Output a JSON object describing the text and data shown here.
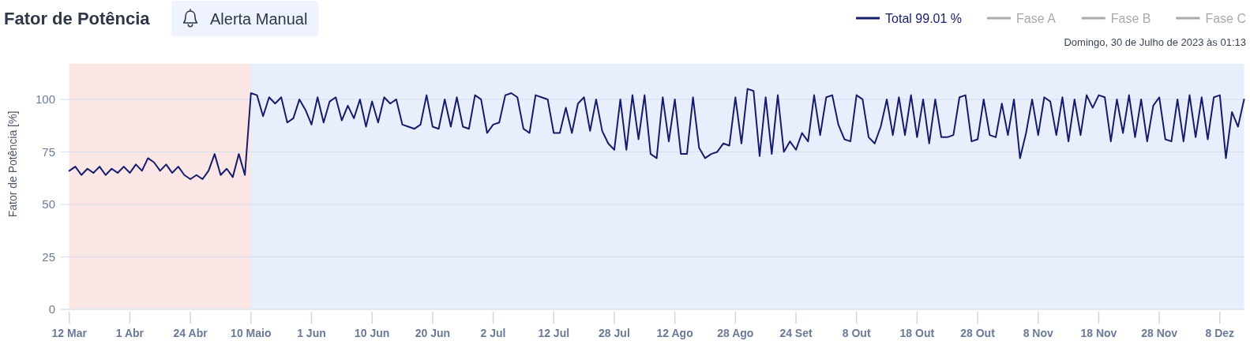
{
  "chart_data": {
    "type": "line",
    "title": "Fator de Potência",
    "ylabel": "Fator de Potência [%]",
    "annotations": [
      "Alerta Manual",
      "Domingo, 30 de Julho de 2023 às 01:13"
    ],
    "categories": [
      "12 Mar",
      null,
      null,
      null,
      null,
      null,
      null,
      null,
      null,
      null,
      "1 Abr",
      null,
      null,
      null,
      null,
      null,
      null,
      null,
      null,
      null,
      "24 Abr",
      null,
      null,
      null,
      null,
      null,
      null,
      null,
      null,
      null,
      "10 Maio",
      null,
      null,
      null,
      null,
      null,
      null,
      null,
      null,
      null,
      "1 Jun",
      null,
      null,
      null,
      null,
      null,
      null,
      null,
      null,
      null,
      "10 Jun",
      null,
      null,
      null,
      null,
      null,
      null,
      null,
      null,
      null,
      "20 Jun",
      null,
      null,
      null,
      null,
      null,
      null,
      null,
      null,
      null,
      "2 Jul",
      null,
      null,
      null,
      null,
      null,
      null,
      null,
      null,
      null,
      "12 Jul",
      null,
      null,
      null,
      null,
      null,
      null,
      null,
      null,
      null,
      "28 Jul",
      null,
      null,
      null,
      null,
      null,
      null,
      null,
      null,
      null,
      "12 Ago",
      null,
      null,
      null,
      null,
      null,
      null,
      null,
      null,
      null,
      "28 Ago",
      null,
      null,
      null,
      null,
      null,
      null,
      null,
      null,
      null,
      "24 Set",
      null,
      null,
      null,
      null,
      null,
      null,
      null,
      null,
      null,
      "8 Out",
      null,
      null,
      null,
      null,
      null,
      null,
      null,
      null,
      null,
      "18 Out",
      null,
      null,
      null,
      null,
      null,
      null,
      null,
      null,
      null,
      "28 Out",
      null,
      null,
      null,
      null,
      null,
      null,
      null,
      null,
      null,
      "8 Nov",
      null,
      null,
      null,
      null,
      null,
      null,
      null,
      null,
      null,
      "18 Nov",
      null,
      null,
      null,
      null,
      null,
      null,
      null,
      null,
      null,
      "28 Nov",
      null,
      null,
      null,
      null,
      null,
      null,
      null,
      null,
      null,
      "8 Dez",
      null,
      null,
      null,
      null
    ],
    "series": [
      {
        "name": "Total 99.01 %",
        "color": "#151c6b",
        "values": [
          66,
          68,
          64,
          67,
          65,
          68,
          64,
          67,
          65,
          68,
          65,
          69,
          66,
          72,
          70,
          66,
          69,
          65,
          68,
          64,
          62,
          64,
          62,
          66,
          74,
          64,
          67,
          63,
          74,
          64,
          103,
          102,
          92,
          101,
          98,
          101,
          89,
          91,
          100,
          95,
          88,
          101,
          89,
          99,
          101,
          90,
          97,
          91,
          100,
          87,
          99,
          89,
          101,
          98,
          100,
          88,
          87,
          86,
          88,
          102,
          87,
          86,
          100,
          87,
          101,
          87,
          86,
          102,
          100,
          84,
          88,
          89,
          102,
          103,
          101,
          86,
          84,
          102,
          101,
          100,
          84,
          84,
          96,
          84,
          98,
          101,
          85,
          100,
          85,
          79,
          76,
          100,
          76,
          102,
          81,
          102,
          74,
          72,
          101,
          80,
          100,
          74,
          74,
          101,
          77,
          72,
          74,
          75,
          79,
          78,
          101,
          79,
          105,
          104,
          73,
          101,
          74,
          102,
          75,
          80,
          76,
          84,
          80,
          102,
          83,
          101,
          102,
          88,
          81,
          80,
          102,
          100,
          82,
          79,
          87,
          100,
          83,
          101,
          83,
          102,
          82,
          100,
          79,
          100,
          82,
          82,
          83,
          101,
          102,
          80,
          81,
          100,
          83,
          82,
          98,
          83,
          100,
          72,
          84,
          100,
          83,
          101,
          99,
          83,
          101,
          80,
          100,
          83,
          102,
          96,
          102,
          101,
          80,
          100,
          84,
          102,
          82,
          100,
          80,
          97,
          101,
          81,
          80,
          100,
          80,
          102,
          82,
          101,
          81,
          101,
          102,
          72,
          94,
          87,
          100
        ]
      },
      {
        "name": "Fase A",
        "color": "#a9a9a9",
        "values": [
          null,
          null,
          null,
          null,
          null,
          null,
          null,
          null,
          null,
          null,
          null,
          null,
          null,
          null,
          null,
          null,
          null,
          null,
          null,
          null,
          null,
          null,
          null,
          null,
          null,
          null,
          null,
          null,
          null,
          null,
          null,
          null,
          null,
          null,
          null,
          null,
          null,
          null,
          null,
          null,
          null,
          null,
          null,
          null,
          null,
          null,
          null,
          null,
          null,
          null,
          null,
          null,
          null,
          null,
          null,
          null,
          null,
          null,
          null,
          null,
          null,
          null,
          null,
          null,
          null,
          null,
          null,
          null,
          null,
          null,
          null,
          null,
          null,
          null,
          null,
          null,
          null,
          null,
          null,
          null,
          null,
          null,
          null,
          null,
          null,
          null,
          null,
          null,
          null,
          null,
          null,
          null,
          null,
          null,
          null,
          null,
          null,
          null,
          null,
          null,
          null,
          null,
          null,
          null,
          null,
          null,
          null,
          null,
          null,
          null,
          null,
          null,
          null,
          null,
          null,
          null,
          null,
          null,
          null,
          null,
          null,
          null,
          null,
          null,
          null,
          null,
          null,
          null,
          null,
          null,
          null,
          null,
          null,
          null,
          null,
          null,
          null,
          null,
          null,
          null,
          null,
          null,
          null,
          null,
          null,
          null,
          null,
          null,
          null,
          null,
          null,
          null,
          null,
          null,
          null,
          null,
          null,
          null,
          null,
          null,
          null,
          null,
          null,
          null,
          null,
          null,
          null,
          null,
          null,
          null,
          null,
          null,
          null,
          null,
          null,
          null,
          null,
          null,
          null,
          null,
          null,
          null,
          null,
          null,
          null,
          null,
          null,
          null,
          null,
          null,
          null,
          null,
          null,
          null,
          null
        ]
      },
      {
        "name": "Fase B",
        "color": "#a9a9a9",
        "values": [
          null,
          null,
          null,
          null,
          null,
          null,
          null,
          null,
          null,
          null,
          null,
          null,
          null,
          null,
          null,
          null,
          null,
          null,
          null,
          null,
          null,
          null,
          null,
          null,
          null,
          null,
          null,
          null,
          null,
          null,
          null,
          null,
          null,
          null,
          null,
          null,
          null,
          null,
          null,
          null,
          null,
          null,
          null,
          null,
          null,
          null,
          null,
          null,
          null,
          null,
          null,
          null,
          null,
          null,
          null,
          null,
          null,
          null,
          null,
          null,
          null,
          null,
          null,
          null,
          null,
          null,
          null,
          null,
          null,
          null,
          null,
          null,
          null,
          null,
          null,
          null,
          null,
          null,
          null,
          null,
          null,
          null,
          null,
          null,
          null,
          null,
          null,
          null,
          null,
          null,
          null,
          null,
          null,
          null,
          null,
          null,
          null,
          null,
          null,
          null,
          null,
          null,
          null,
          null,
          null,
          null,
          null,
          null,
          null,
          null,
          null,
          null,
          null,
          null,
          null,
          null,
          null,
          null,
          null,
          null,
          null,
          null,
          null,
          null,
          null,
          null,
          null,
          null,
          null,
          null,
          null,
          null,
          null,
          null,
          null,
          null,
          null,
          null,
          null,
          null,
          null,
          null,
          null,
          null,
          null,
          null,
          null,
          null,
          null,
          null,
          null,
          null,
          null,
          null,
          null,
          null,
          null,
          null,
          null,
          null,
          null,
          null,
          null,
          null,
          null,
          null,
          null,
          null,
          null,
          null,
          null,
          null,
          null,
          null,
          null,
          null,
          null,
          null,
          null,
          null,
          null,
          null,
          null,
          null,
          null,
          null,
          null,
          null,
          null,
          null,
          null,
          null,
          null,
          null,
          null
        ]
      },
      {
        "name": "Fase C",
        "color": "#a9a9a9",
        "values": [
          null,
          null,
          null,
          null,
          null,
          null,
          null,
          null,
          null,
          null,
          null,
          null,
          null,
          null,
          null,
          null,
          null,
          null,
          null,
          null,
          null,
          null,
          null,
          null,
          null,
          null,
          null,
          null,
          null,
          null,
          null,
          null,
          null,
          null,
          null,
          null,
          null,
          null,
          null,
          null,
          null,
          null,
          null,
          null,
          null,
          null,
          null,
          null,
          null,
          null,
          null,
          null,
          null,
          null,
          null,
          null,
          null,
          null,
          null,
          null,
          null,
          null,
          null,
          null,
          null,
          null,
          null,
          null,
          null,
          null,
          null,
          null,
          null,
          null,
          null,
          null,
          null,
          null,
          null,
          null,
          null,
          null,
          null,
          null,
          null,
          null,
          null,
          null,
          null,
          null,
          null,
          null,
          null,
          null,
          null,
          null,
          null,
          null,
          null,
          null,
          null,
          null,
          null,
          null,
          null,
          null,
          null,
          null,
          null,
          null,
          null,
          null,
          null,
          null,
          null,
          null,
          null,
          null,
          null,
          null,
          null,
          null,
          null,
          null,
          null,
          null,
          null,
          null,
          null,
          null,
          null,
          null,
          null,
          null,
          null,
          null,
          null,
          null,
          null,
          null,
          null,
          null,
          null,
          null,
          null,
          null,
          null,
          null,
          null,
          null,
          null,
          null,
          null,
          null,
          null,
          null,
          null,
          null,
          null,
          null,
          null,
          null,
          null,
          null,
          null,
          null,
          null,
          null,
          null,
          null,
          null,
          null,
          null,
          null,
          null,
          null,
          null,
          null,
          null,
          null,
          null,
          null,
          null,
          null,
          null,
          null,
          null,
          null,
          null,
          null,
          null,
          null,
          null,
          null,
          null
        ]
      }
    ],
    "ylim": [
      0,
      117
    ],
    "yticks": [
      0,
      25,
      50,
      75,
      100
    ],
    "grid": "y",
    "legend": "top right",
    "bands": [
      {
        "axis": "x",
        "from": "12 Mar",
        "to": "10 Maio",
        "color": "#fbe6e6"
      }
    ]
  }
}
